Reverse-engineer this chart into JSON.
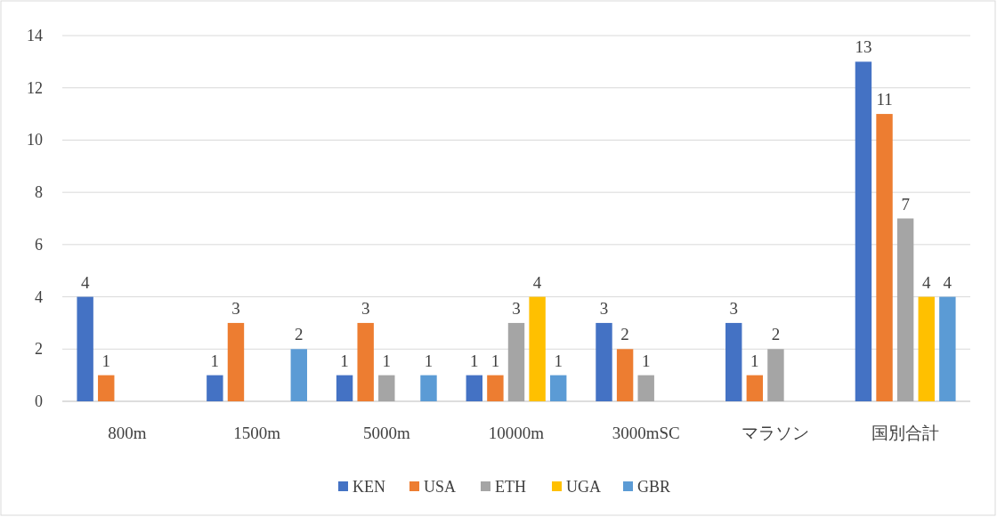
{
  "chart_data": {
    "type": "bar",
    "categories": [
      "800m",
      "1500m",
      "5000m",
      "10000m",
      "3000mSC",
      "マラソン",
      "国別合計"
    ],
    "series": [
      {
        "name": "KEN",
        "color": "#4472c4",
        "values": [
          4,
          1,
          1,
          1,
          3,
          3,
          13
        ]
      },
      {
        "name": "USA",
        "color": "#ed7d31",
        "values": [
          1,
          3,
          3,
          1,
          2,
          1,
          11
        ]
      },
      {
        "name": "ETH",
        "color": "#a5a5a5",
        "values": [
          null,
          null,
          1,
          3,
          1,
          2,
          7
        ]
      },
      {
        "name": "UGA",
        "color": "#ffc000",
        "values": [
          null,
          null,
          null,
          4,
          null,
          null,
          4
        ]
      },
      {
        "name": "GBR",
        "color": "#5b9bd5",
        "values": [
          null,
          2,
          1,
          1,
          null,
          null,
          4
        ]
      }
    ],
    "ylim": [
      0,
      14
    ],
    "yticks": [
      0,
      2,
      4,
      6,
      8,
      10,
      12,
      14
    ],
    "grid": "y",
    "legend": "bottom",
    "data_labels": true
  }
}
